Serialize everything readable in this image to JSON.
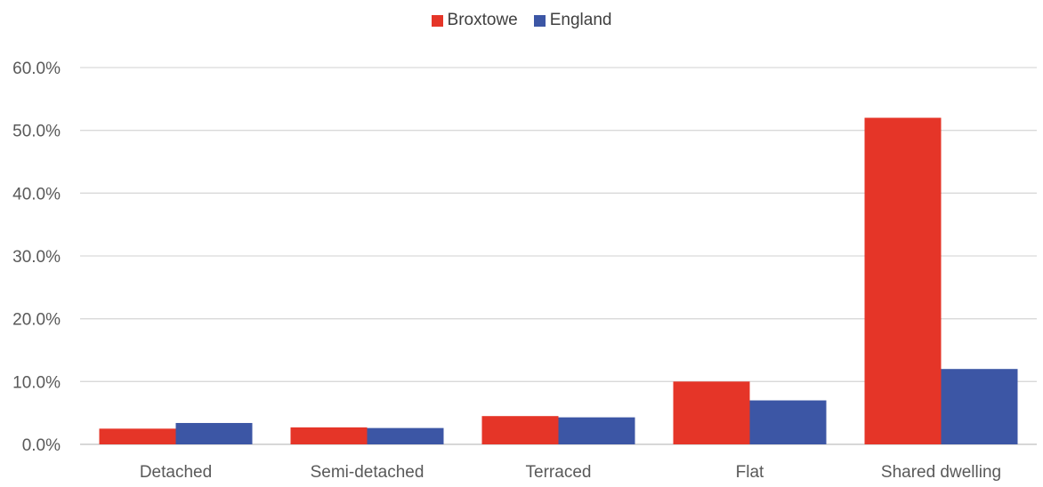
{
  "chart_data": {
    "type": "bar",
    "title": "",
    "xlabel": "",
    "ylabel": "",
    "categories": [
      "Detached",
      "Semi-detached",
      "Terraced",
      "Flat",
      "Shared dwelling"
    ],
    "series": [
      {
        "name": "Broxtowe",
        "color": "#e53528",
        "values": [
          2.5,
          2.7,
          4.5,
          10.0,
          52.0
        ]
      },
      {
        "name": "England",
        "color": "#3c56a5",
        "values": [
          3.4,
          2.6,
          4.3,
          7.0,
          12.0
        ]
      }
    ],
    "ylim": [
      0,
      60
    ],
    "yticks": [
      "0.0%",
      "10.0%",
      "20.0%",
      "30.0%",
      "40.0%",
      "50.0%",
      "60.0%"
    ],
    "grid": true,
    "legend_position": "top-center"
  }
}
